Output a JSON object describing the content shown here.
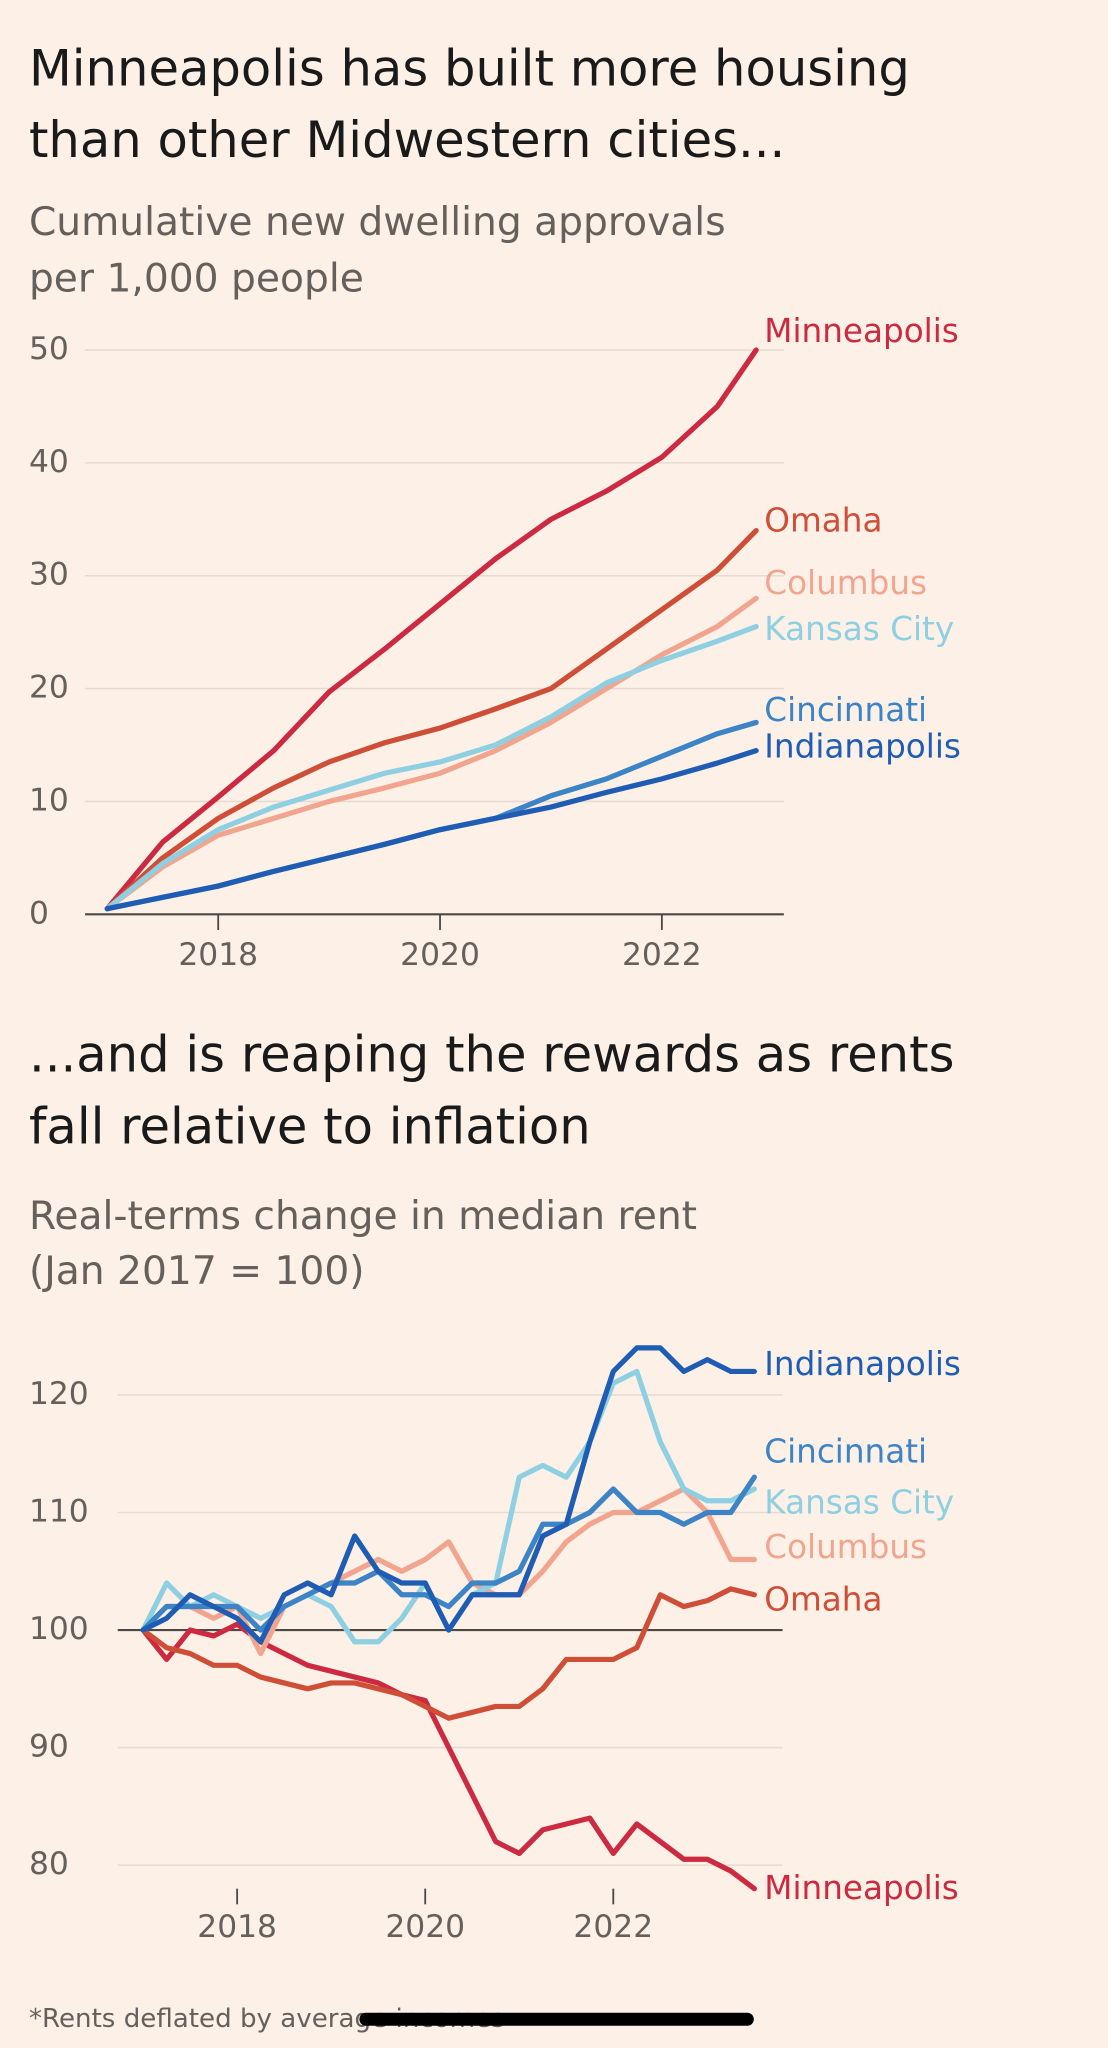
{
  "chart_data": [
    {
      "type": "line",
      "title": [
        "Minneapolis has built more housing",
        "than other Midwestern cities..."
      ],
      "subtitle": [
        "Cumulative new dwelling approvals",
        "per 1,000 people"
      ],
      "x": [
        2017,
        2017.5,
        2018,
        2018.5,
        2019,
        2019.5,
        2020,
        2020.5,
        2021,
        2021.5,
        2022,
        2022.5,
        2022.85
      ],
      "xlim": [
        2016.8,
        2023.1
      ],
      "xticks": [
        2018,
        2020,
        2022
      ],
      "ylim": [
        0,
        50
      ],
      "yticks": [
        0,
        10,
        20,
        30,
        40,
        50
      ],
      "grid": true,
      "series": [
        {
          "name": "Minneapolis",
          "color": "#cc2a40",
          "values": [
            0.5,
            6.4,
            10.4,
            14.5,
            19.7,
            23.5,
            27.5,
            31.5,
            35,
            37.5,
            40.5,
            45,
            50
          ]
        },
        {
          "name": "Omaha",
          "color": "#cf4e38",
          "values": [
            0.5,
            5,
            8.5,
            11.2,
            13.5,
            15.2,
            16.5,
            18.2,
            20,
            23.5,
            27,
            30.5,
            34
          ]
        },
        {
          "name": "Columbus",
          "color": "#f2a58e",
          "values": [
            0.5,
            4.2,
            7,
            8.5,
            10,
            11.2,
            12.5,
            14.5,
            17,
            20,
            23,
            25.5,
            28
          ]
        },
        {
          "name": "Kansas City",
          "color": "#8ecfe2",
          "values": [
            0.5,
            4.5,
            7.5,
            9.5,
            11,
            12.5,
            13.5,
            15,
            17.5,
            20.5,
            22.5,
            24.2,
            25.5
          ]
        },
        {
          "name": "Cincinnati",
          "color": "#3d84c6",
          "values": [
            0.5,
            1.5,
            2.5,
            3.8,
            5,
            6.2,
            7.5,
            8.5,
            10.5,
            12,
            14,
            16,
            17
          ]
        },
        {
          "name": "Indianapolis",
          "color": "#1f5cb3",
          "values": [
            0.5,
            1.5,
            2.5,
            3.8,
            5,
            6.2,
            7.5,
            8.5,
            9.5,
            10.8,
            12,
            13.4,
            14.5
          ]
        }
      ]
    },
    {
      "type": "line",
      "title": [
        "...and is reaping the rewards as rents",
        "fall relative to inflation"
      ],
      "subtitle": [
        "Real-terms change in median rent",
        "(Jan 2017 = 100)"
      ],
      "x": [
        2017,
        2017.25,
        2017.5,
        2017.75,
        2018,
        2018.25,
        2018.5,
        2018.75,
        2019,
        2019.25,
        2019.5,
        2019.75,
        2020,
        2020.25,
        2020.5,
        2020.75,
        2021,
        2021.25,
        2021.5,
        2021.75,
        2022,
        2022.25,
        2022.5,
        2022.75,
        2023,
        2023.25,
        2023.5
      ],
      "xlim": [
        2016.8,
        2023.8
      ],
      "xticks": [
        2018,
        2020,
        2022
      ],
      "ylim": [
        78,
        124
      ],
      "yticks": [
        80,
        90,
        100,
        110,
        120
      ],
      "grid": true,
      "baseline": 100,
      "series": [
        {
          "name": "Minneapolis",
          "color": "#cc2a40",
          "values": [
            100,
            97.5,
            100,
            99.5,
            100.5,
            99,
            98,
            97,
            96.5,
            96,
            95.5,
            94.5,
            94,
            90,
            86,
            82,
            81,
            83,
            83.5,
            84,
            81,
            83.5,
            82,
            80.5,
            80.5,
            79.5,
            78
          ]
        },
        {
          "name": "Omaha",
          "color": "#cf4e38",
          "values": [
            100,
            98.5,
            98,
            97,
            97,
            96,
            95.5,
            95,
            95.5,
            95.5,
            95,
            94.5,
            93.5,
            92.5,
            93,
            93.5,
            93.5,
            95,
            97.5,
            97.5,
            97.5,
            98.5,
            103,
            102,
            102.5,
            103.5,
            103
          ]
        },
        {
          "name": "Columbus",
          "color": "#f2a58e",
          "values": [
            100,
            102,
            102,
            101,
            102,
            98,
            102,
            103,
            104,
            105,
            106,
            105,
            106,
            107.5,
            104,
            103,
            103,
            105,
            107.5,
            109,
            110,
            110,
            111,
            112,
            110,
            106,
            106
          ]
        },
        {
          "name": "Kansas City",
          "color": "#8ecfe2",
          "values": [
            100,
            104,
            102,
            103,
            102,
            101,
            102,
            103,
            102,
            99,
            99,
            101,
            104,
            100,
            103,
            104,
            113,
            114,
            113,
            116,
            121,
            122,
            116,
            112,
            111,
            111,
            112
          ]
        },
        {
          "name": "Cincinnati",
          "color": "#3d84c6",
          "values": [
            100,
            102,
            102,
            102,
            102,
            100,
            102,
            103,
            104,
            104,
            105,
            103,
            103,
            102,
            104,
            104,
            105,
            109,
            109,
            110,
            112,
            110,
            110,
            109,
            110,
            110,
            113
          ]
        },
        {
          "name": "Indianapolis",
          "color": "#1f5cb3",
          "values": [
            100,
            101,
            103,
            102,
            101,
            99,
            103,
            104,
            103,
            108,
            105,
            104,
            104,
            100,
            103,
            103,
            103,
            108,
            109,
            116,
            122,
            124,
            124,
            122,
            123,
            122,
            122
          ]
        }
      ]
    }
  ],
  "footnote": "*Rents deflated by average incomes"
}
